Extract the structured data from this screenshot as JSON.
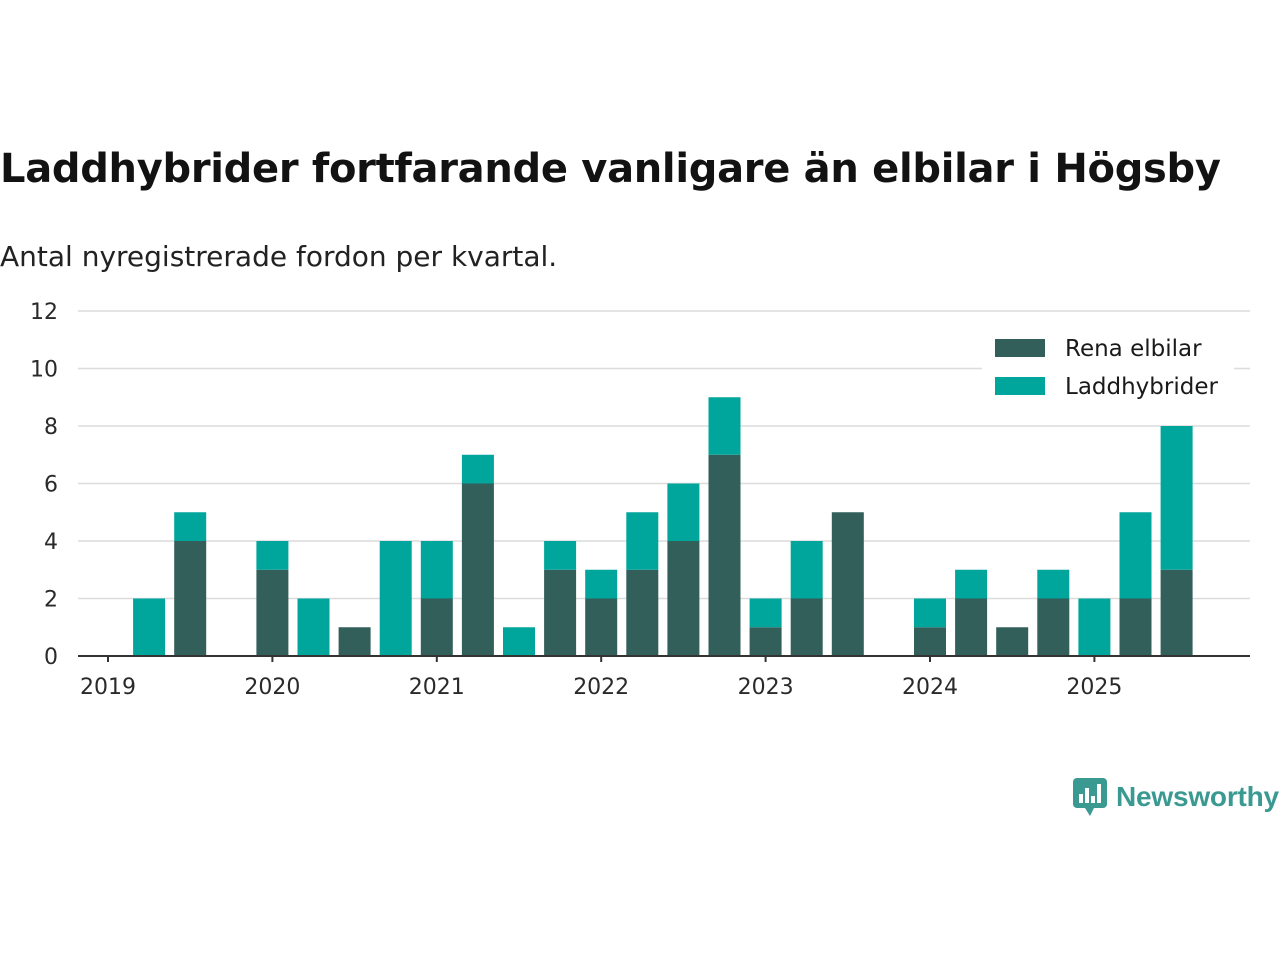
{
  "title": "Laddhybrider fortfarande vanligare än elbilar i Högsby",
  "subtitle": "Antal nyregistrerade fordon per kvartal.",
  "brand": {
    "name": "Newsworthy",
    "color": "#3a9a92"
  },
  "chart_data": {
    "type": "bar",
    "stacked": true,
    "categories": [
      "2019 Q1",
      "2019 Q2",
      "2019 Q3",
      "2019 Q4",
      "2020 Q1",
      "2020 Q2",
      "2020 Q3",
      "2020 Q4",
      "2021 Q1",
      "2021 Q2",
      "2021 Q3",
      "2021 Q4",
      "2022 Q1",
      "2022 Q2",
      "2022 Q3",
      "2022 Q4",
      "2023 Q1",
      "2023 Q2",
      "2023 Q3",
      "2023 Q4",
      "2024 Q1",
      "2024 Q2",
      "2024 Q3",
      "2024 Q4",
      "2025 Q1",
      "2025 Q2",
      "2025 Q3"
    ],
    "x_tick_labels": [
      "2019",
      "2020",
      "2021",
      "2022",
      "2023",
      "2024",
      "2025"
    ],
    "y_ticks": [
      0,
      2,
      4,
      6,
      8,
      10,
      12
    ],
    "ylim": [
      0,
      12
    ],
    "legend_position": "top-right",
    "series": [
      {
        "name": "Rena elbilar",
        "color": "#335f5a",
        "values": [
          0,
          0,
          4,
          0,
          3,
          0,
          1,
          0,
          2,
          6,
          0,
          3,
          2,
          3,
          4,
          7,
          1,
          2,
          5,
          0,
          1,
          2,
          1,
          2,
          0,
          2,
          3
        ]
      },
      {
        "name": "Laddhybrider",
        "color": "#00a59b",
        "values": [
          0,
          2,
          1,
          0,
          1,
          2,
          0,
          4,
          2,
          1,
          1,
          1,
          1,
          2,
          2,
          2,
          1,
          2,
          0,
          0,
          1,
          1,
          0,
          1,
          2,
          3,
          5
        ]
      }
    ]
  }
}
